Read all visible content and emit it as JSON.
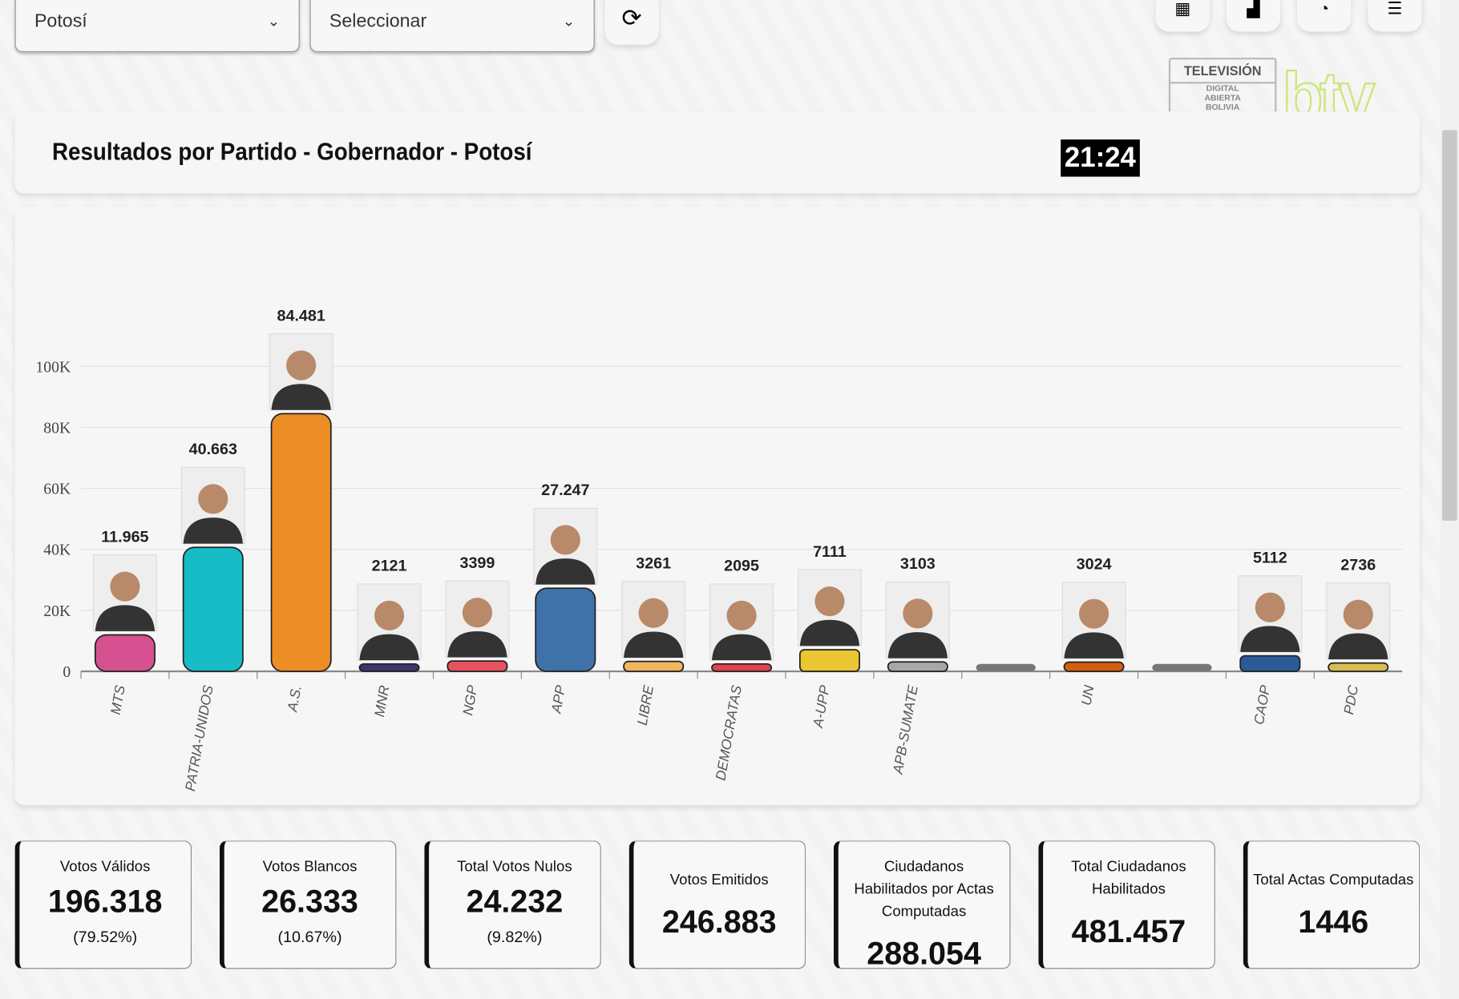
{
  "filters": {
    "department": "Potosí",
    "secondary": "Seleccionar"
  },
  "logo": {
    "line1": "TELEVISIÓN",
    "line2": "DIGITAL",
    "line3": "ABIERTA",
    "line4": "BOLIVIA",
    "brand": "btv"
  },
  "chart_title": "Resultados por Partido - Gobernador - Potosí",
  "chart_data": {
    "type": "bar",
    "title": "Resultados por Partido - Gobernador - Potosí",
    "categories": [
      "MTS",
      "PATRIA-UNIDOS",
      "A.S.",
      "MNR",
      "NGP",
      "APP",
      "LIBRE",
      "DEMOCRATAS",
      "A-UPP",
      "APB-SUMATE",
      "",
      "UN",
      "",
      "CAOP",
      "PDC"
    ],
    "values": [
      11965,
      40663,
      84481,
      2121,
      3399,
      27247,
      3261,
      2095,
      7111,
      3103,
      0,
      3024,
      0,
      5112,
      2736
    ],
    "value_labels": [
      "11.965",
      "40.663",
      "84.481",
      "2121",
      "3399",
      "27.247",
      "3261",
      "2095",
      "7111",
      "3103",
      "",
      "3024",
      "",
      "5112",
      "2736"
    ],
    "colors": [
      "#d6518f",
      "#17bcc6",
      "#ec8d26",
      "#3d3570",
      "#e8525f",
      "#3f72a8",
      "#f3b55f",
      "#e0434f",
      "#e9c632",
      "#a8a8a8",
      "#777777",
      "#d35f0e",
      "#777777",
      "#2b5a96",
      "#d9bd50"
    ],
    "has_photo": [
      true,
      true,
      true,
      true,
      true,
      true,
      true,
      true,
      true,
      true,
      false,
      true,
      false,
      true,
      true
    ],
    "yticks": [
      "0",
      "20K",
      "40K",
      "60K",
      "80K",
      "100K"
    ],
    "ylim": [
      0,
      100000
    ],
    "grid": true
  },
  "stats": [
    {
      "label": "Votos Válidos",
      "value": "196.318",
      "pct": "(79.52%)"
    },
    {
      "label": "Votos Blancos",
      "value": "26.333",
      "pct": "(10.67%)"
    },
    {
      "label": "Total Votos Nulos",
      "value": "24.232",
      "pct": "(9.82%)"
    },
    {
      "label": "Votos Emitidos",
      "value": "246.883"
    },
    {
      "label": "Ciudadanos Habilitados por Actas Computadas",
      "value": "288.054"
    },
    {
      "label": "Total Ciudadanos Habilitados",
      "value": "481.457"
    },
    {
      "label": "Total Actas Computadas",
      "value": "1446"
    }
  ],
  "clock": "21:24"
}
